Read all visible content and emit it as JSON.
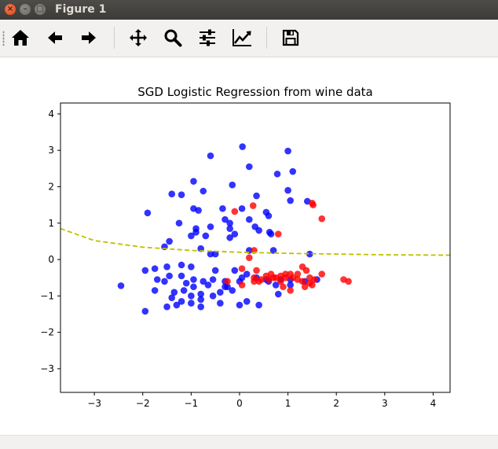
{
  "window": {
    "title": "Figure 1"
  },
  "toolbar": {
    "buttons": [
      {
        "name": "home",
        "icon": "home-icon"
      },
      {
        "name": "back",
        "icon": "arrow-left-icon"
      },
      {
        "name": "forward",
        "icon": "arrow-right-icon"
      },
      {
        "name": "pan",
        "icon": "move-icon"
      },
      {
        "name": "zoom",
        "icon": "magnifier-icon"
      },
      {
        "name": "subplots",
        "icon": "sliders-icon"
      },
      {
        "name": "edit-axes",
        "icon": "line-chart-icon"
      },
      {
        "name": "save",
        "icon": "floppy-disk-icon"
      }
    ]
  },
  "chart_data": {
    "type": "scatter",
    "title": "SGD Logistic Regression from wine data",
    "xlabel": "",
    "ylabel": "",
    "xlim": [
      -3.7,
      4.35
    ],
    "ylim": [
      -3.65,
      4.3
    ],
    "xticks": [
      "−3",
      "−2",
      "−1",
      "0",
      "1",
      "2",
      "3",
      "4"
    ],
    "yticks": [
      "−3",
      "−2",
      "−1",
      "0",
      "1",
      "2",
      "3",
      "4"
    ],
    "xtick_values": [
      -3,
      -2,
      -1,
      0,
      1,
      2,
      3,
      4
    ],
    "ytick_values": [
      -3,
      -2,
      -1,
      0,
      1,
      2,
      3,
      4
    ],
    "grid": false,
    "series": [
      {
        "color": "#0000ff",
        "points": [
          [
            0.06,
            3.1
          ],
          [
            1.0,
            2.98
          ],
          [
            -0.6,
            2.85
          ],
          [
            0.2,
            2.55
          ],
          [
            1.1,
            2.42
          ],
          [
            0.78,
            2.35
          ],
          [
            -0.95,
            2.15
          ],
          [
            -0.15,
            2.05
          ],
          [
            -1.4,
            1.8
          ],
          [
            -1.2,
            1.78
          ],
          [
            -0.75,
            1.88
          ],
          [
            0.35,
            1.75
          ],
          [
            1.0,
            1.9
          ],
          [
            1.4,
            1.6
          ],
          [
            1.05,
            1.62
          ],
          [
            -1.9,
            1.28
          ],
          [
            -0.95,
            1.4
          ],
          [
            -0.85,
            1.35
          ],
          [
            -0.35,
            1.4
          ],
          [
            0.05,
            1.4
          ],
          [
            0.55,
            1.3
          ],
          [
            0.6,
            1.2
          ],
          [
            -0.3,
            1.1
          ],
          [
            0.2,
            1.1
          ],
          [
            -0.2,
            1.0
          ],
          [
            -0.6,
            0.9
          ],
          [
            -0.9,
            0.85
          ],
          [
            -1.25,
            1.0
          ],
          [
            -0.2,
            0.85
          ],
          [
            0.32,
            0.9
          ],
          [
            0.4,
            0.8
          ],
          [
            0.62,
            0.75
          ],
          [
            0.65,
            0.7
          ],
          [
            -0.9,
            0.75
          ],
          [
            -1.0,
            0.65
          ],
          [
            -0.7,
            0.65
          ],
          [
            -0.2,
            0.6
          ],
          [
            -0.1,
            0.7
          ],
          [
            -1.45,
            0.5
          ],
          [
            -1.55,
            0.35
          ],
          [
            -0.8,
            0.3
          ],
          [
            -0.6,
            0.15
          ],
          [
            -0.5,
            0.15
          ],
          [
            0.2,
            0.25
          ],
          [
            0.7,
            0.25
          ],
          [
            1.45,
            0.15
          ],
          [
            1.6,
            -0.55
          ],
          [
            1.35,
            -0.6
          ],
          [
            1.05,
            -0.55
          ],
          [
            0.85,
            -0.55
          ],
          [
            0.6,
            -0.6
          ],
          [
            0.35,
            -0.5
          ],
          [
            0.15,
            -0.4
          ],
          [
            -0.1,
            -0.3
          ],
          [
            -0.5,
            -0.3
          ],
          [
            -1.0,
            -0.2
          ],
          [
            -1.2,
            -0.15
          ],
          [
            -1.5,
            -0.2
          ],
          [
            -1.75,
            -0.25
          ],
          [
            -1.95,
            -0.3
          ],
          [
            -1.7,
            -0.55
          ],
          [
            -1.45,
            -0.45
          ],
          [
            -1.2,
            -0.45
          ],
          [
            -0.95,
            -0.55
          ],
          [
            -0.75,
            -0.6
          ],
          [
            -0.55,
            -0.55
          ],
          [
            -0.3,
            -0.6
          ],
          [
            0.0,
            -0.6
          ],
          [
            -0.15,
            -0.85
          ],
          [
            -0.4,
            -0.9
          ],
          [
            -0.55,
            -1.0
          ],
          [
            -0.8,
            -0.95
          ],
          [
            -1.0,
            -1.0
          ],
          [
            -1.15,
            -0.85
          ],
          [
            -1.35,
            -0.9
          ],
          [
            -1.75,
            -0.85
          ],
          [
            -1.4,
            -1.05
          ],
          [
            -1.2,
            -1.15
          ],
          [
            -1.0,
            -1.2
          ],
          [
            -0.8,
            -1.1
          ],
          [
            -0.4,
            -1.2
          ],
          [
            -0.3,
            -0.75
          ],
          [
            -0.65,
            -0.7
          ],
          [
            -0.95,
            -0.75
          ],
          [
            -1.5,
            -1.3
          ],
          [
            -1.3,
            -1.25
          ],
          [
            -0.8,
            -1.3
          ],
          [
            0.0,
            -1.25
          ],
          [
            0.15,
            -1.15
          ],
          [
            0.4,
            -1.25
          ],
          [
            -1.95,
            -1.42
          ],
          [
            -2.45,
            -0.72
          ],
          [
            0.8,
            -0.95
          ],
          [
            1.05,
            -0.7
          ],
          [
            -0.25,
            -0.75
          ],
          [
            0.55,
            -0.55
          ],
          [
            0.05,
            -0.5
          ],
          [
            -1.55,
            -0.6
          ],
          [
            -1.1,
            -0.65
          ],
          [
            0.75,
            -0.7
          ]
        ]
      },
      {
        "color": "#ff0000",
        "points": [
          [
            0.28,
            1.48
          ],
          [
            -0.1,
            1.32
          ],
          [
            1.5,
            1.55
          ],
          [
            1.52,
            1.5
          ],
          [
            1.7,
            1.12
          ],
          [
            0.8,
            0.7
          ],
          [
            0.3,
            0.25
          ],
          [
            0.2,
            0.05
          ],
          [
            1.3,
            -0.2
          ],
          [
            1.38,
            -0.3
          ],
          [
            1.2,
            -0.4
          ],
          [
            0.05,
            -0.25
          ],
          [
            0.35,
            -0.3
          ],
          [
            0.55,
            -0.45
          ],
          [
            0.65,
            -0.4
          ],
          [
            0.75,
            -0.5
          ],
          [
            0.85,
            -0.45
          ],
          [
            0.95,
            -0.4
          ],
          [
            1.05,
            -0.4
          ],
          [
            1.1,
            -0.5
          ],
          [
            1.2,
            -0.55
          ],
          [
            1.3,
            -0.6
          ],
          [
            1.45,
            -0.5
          ],
          [
            1.55,
            -0.55
          ],
          [
            1.7,
            -0.4
          ],
          [
            2.15,
            -0.55
          ],
          [
            2.25,
            -0.6
          ],
          [
            -0.25,
            -0.6
          ],
          [
            0.05,
            -0.7
          ],
          [
            0.3,
            -0.6
          ],
          [
            0.45,
            -0.55
          ],
          [
            0.6,
            -0.55
          ],
          [
            0.7,
            -0.5
          ],
          [
            0.85,
            -0.6
          ],
          [
            0.9,
            -0.75
          ],
          [
            1.05,
            -0.85
          ],
          [
            1.45,
            -0.65
          ],
          [
            1.5,
            -0.7
          ],
          [
            0.3,
            -0.5
          ],
          [
            0.4,
            -0.6
          ],
          [
            1.35,
            -0.75
          ],
          [
            0.95,
            -0.5
          ]
        ]
      },
      {
        "type": "line",
        "color": "#bfbf00",
        "dashed": true,
        "x": [
          -3.7,
          -3.0,
          -2.0,
          -1.0,
          0.0,
          1.0,
          2.0,
          3.0,
          4.35
        ],
        "y": [
          0.85,
          0.52,
          0.34,
          0.25,
          0.2,
          0.17,
          0.15,
          0.13,
          0.12
        ]
      }
    ]
  }
}
